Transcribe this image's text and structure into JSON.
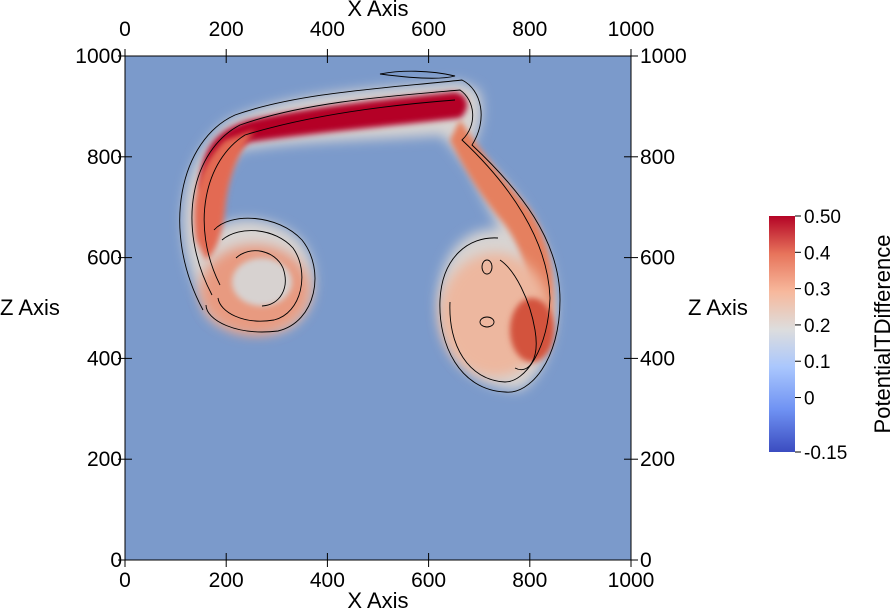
{
  "chart_data": {
    "type": "heatmap",
    "title": "",
    "x_axis": {
      "title": "X Axis",
      "range": [
        0,
        1000
      ],
      "ticks": [
        0,
        200,
        400,
        600,
        800,
        1000
      ],
      "tick_labels": [
        "0",
        "200",
        "400",
        "600",
        "800",
        "1000"
      ],
      "shown_on": [
        "top",
        "bottom"
      ]
    },
    "z_axis": {
      "title": "Z Axis",
      "range": [
        0,
        1000
      ],
      "ticks": [
        0,
        200,
        400,
        600,
        800,
        1000
      ],
      "tick_labels": [
        "0",
        "200",
        "400",
        "600",
        "800",
        "1000"
      ],
      "shown_on": [
        "left",
        "right"
      ]
    },
    "colorbar": {
      "title": "PotentialTDifference",
      "range": [
        -0.15,
        0.5
      ],
      "ticks": [
        0.5,
        0.4,
        0.3,
        0.2,
        0.1,
        0,
        -0.15
      ],
      "tick_labels": [
        "0.50",
        "0.4",
        "0.3",
        "0.2",
        "0.1",
        "0",
        "-0.15"
      ],
      "colormap": "Cool to Warm",
      "colors": {
        "low": "#3b4cc0",
        "mid": "#dddddd",
        "high": "#b40426"
      },
      "placement": "right"
    },
    "background_value": 0.0,
    "contour_lines": true,
    "features": [
      {
        "description": "arch band",
        "path": [
          [
            170,
            740
          ],
          [
            230,
            840
          ],
          [
            400,
            880
          ],
          [
            560,
            910
          ],
          [
            650,
            905
          ]
        ],
        "peak_value": 0.5
      },
      {
        "description": "connector",
        "path": [
          [
            650,
            905
          ],
          [
            680,
            840
          ],
          [
            740,
            740
          ],
          [
            820,
            640
          ],
          [
            860,
            560
          ]
        ],
        "peak_value": 0.3
      },
      {
        "description": "left vortex",
        "center": [
          250,
          560
        ],
        "peak_value": 0.3
      },
      {
        "description": "right vortex",
        "center": [
          760,
          520
        ],
        "peak_value": 0.35
      }
    ]
  },
  "colors": {
    "background_field": "#7b9acb",
    "frame": "#000000"
  }
}
